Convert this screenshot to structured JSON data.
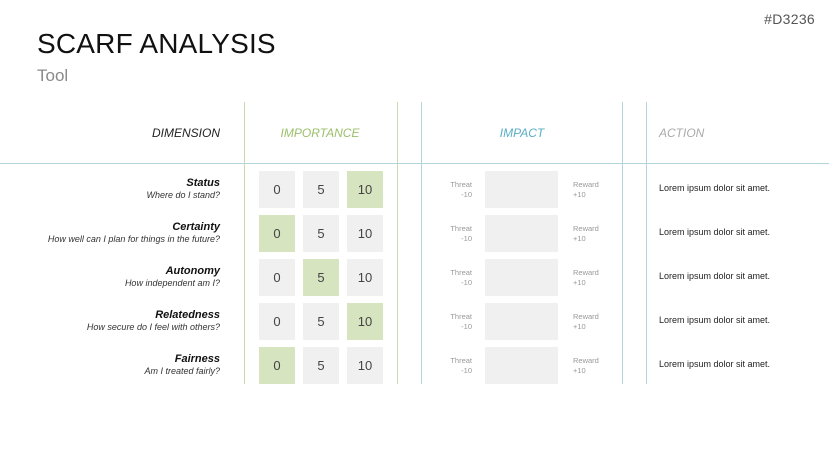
{
  "page_code": "#D3236",
  "title": "SCARF ANALYSIS",
  "subtitle": "Tool",
  "headers": {
    "dimension": "DIMENSION",
    "importance": "IMPORTANCE",
    "impact": "IMPACT",
    "action": "ACTION"
  },
  "colors": {
    "importance_accent": "#9bbf6a",
    "impact_accent": "#5aaec4",
    "selected_fill": "#d6e4c0",
    "cell_fill": "#f0f0f0"
  },
  "score_labels": [
    "0",
    "5",
    "10"
  ],
  "threat": {
    "label": "Threat",
    "value": "-10"
  },
  "reward": {
    "label": "Reward",
    "value": "+10"
  },
  "rows": [
    {
      "name": "Status",
      "question": "Where do I stand?",
      "selected": "10",
      "action": "Lorem ipsum dolor sit amet."
    },
    {
      "name": "Certainty",
      "question": "How well can I plan for things in the future?",
      "selected": "0",
      "action": "Lorem ipsum dolor sit amet."
    },
    {
      "name": "Autonomy",
      "question": "How independent am I?",
      "selected": "5",
      "action": "Lorem ipsum dolor sit amet."
    },
    {
      "name": "Relatedness",
      "question": "How secure do I feel with others?",
      "selected": "10",
      "action": "Lorem ipsum dolor sit amet."
    },
    {
      "name": "Fairness",
      "question": "Am I treated fairly?",
      "selected": "0",
      "action": "Lorem ipsum dolor sit amet."
    }
  ]
}
